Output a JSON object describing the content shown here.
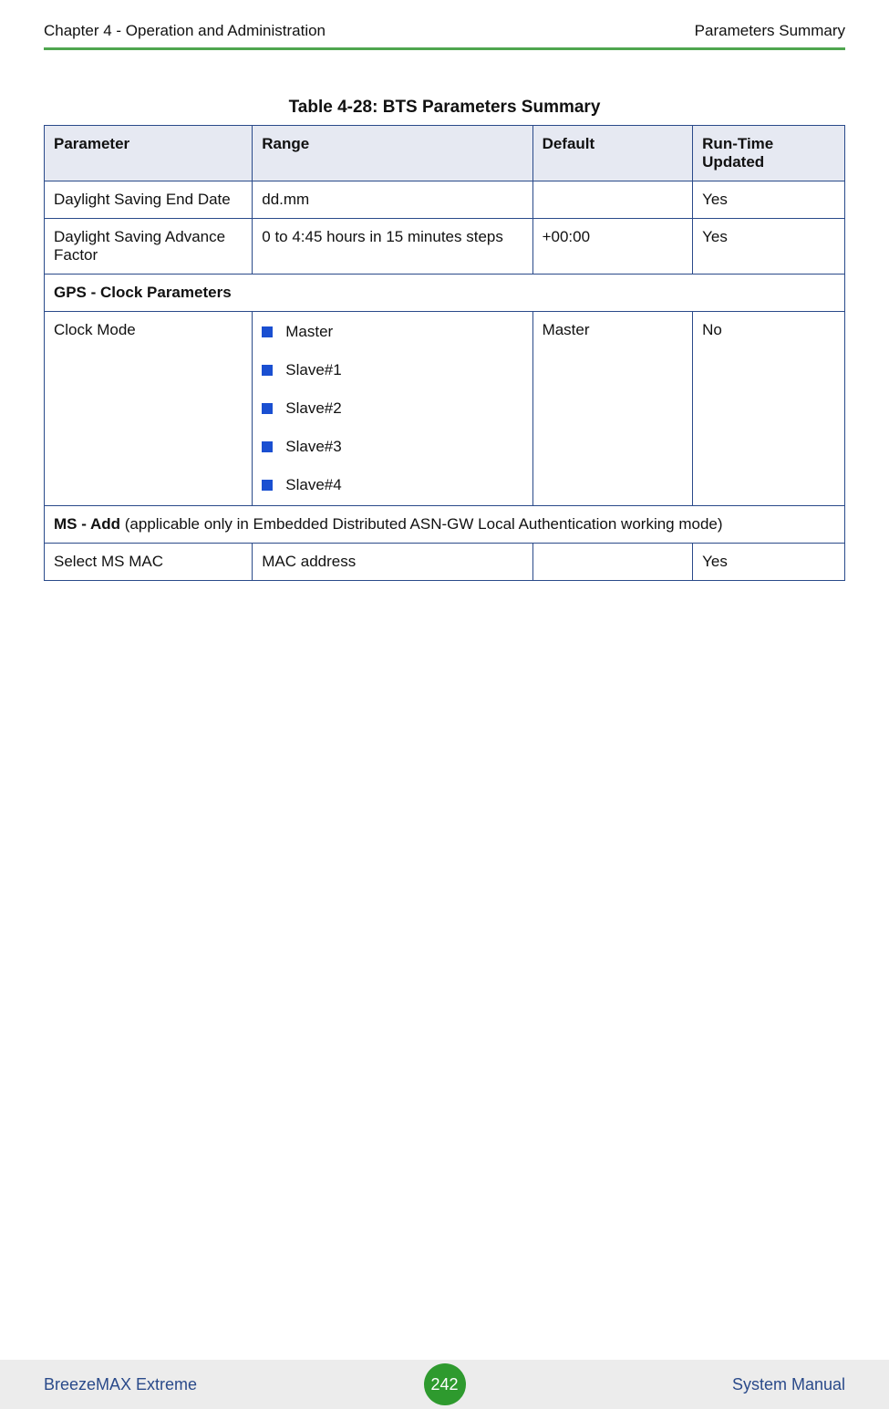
{
  "header": {
    "left": "Chapter 4 - Operation and Administration",
    "right": "Parameters Summary"
  },
  "table": {
    "caption": "Table 4-28: BTS Parameters Summary",
    "columns": {
      "parameter": "Parameter",
      "range": "Range",
      "default": "Default",
      "runtime": "Run-Time Updated"
    },
    "rows": {
      "r1": {
        "parameter": "Daylight Saving End Date",
        "range": "dd.mm",
        "default": "",
        "runtime": "Yes"
      },
      "r2": {
        "parameter": "Daylight Saving Advance Factor",
        "range": "0 to 4:45 hours in 15 minutes steps",
        "default": "+00:00",
        "runtime": "Yes"
      },
      "section_gps": "GPS - Clock Parameters",
      "r3": {
        "parameter": "Clock Mode",
        "range_items": {
          "i1": "Master",
          "i2": "Slave#1",
          "i3": "Slave#2",
          "i4": "Slave#3",
          "i5": "Slave#4"
        },
        "default": "Master",
        "runtime": "No"
      },
      "section_ms_title": "MS - Add",
      "section_ms_note": " (applicable only in Embedded Distributed ASN-GW Local Authentication working mode)",
      "r4": {
        "parameter": "Select MS MAC",
        "range": "MAC address",
        "default": "",
        "runtime": "Yes"
      }
    }
  },
  "footer": {
    "left": "BreezeMAX Extreme",
    "page": "242",
    "right": "System Manual"
  },
  "colors": {
    "header_rule": "#4fa64f",
    "cell_border": "#2a4a8a",
    "th_bg": "#e6e9f2",
    "bullet": "#1a4fd1",
    "footer_bg": "#ececec",
    "footer_text": "#2a4a8a",
    "badge_bg": "#2e9a2e",
    "badge_text": "#ffffff"
  }
}
